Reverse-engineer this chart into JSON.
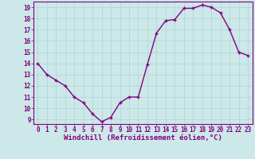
{
  "hours": [
    0,
    1,
    2,
    3,
    4,
    5,
    6,
    7,
    8,
    9,
    10,
    11,
    12,
    13,
    14,
    15,
    16,
    17,
    18,
    19,
    20,
    21,
    22,
    23
  ],
  "values": [
    14,
    13,
    12.5,
    12,
    11,
    10.5,
    9.5,
    8.8,
    9.2,
    10.5,
    11,
    11,
    13.9,
    16.7,
    17.8,
    17.9,
    18.9,
    18.9,
    19.2,
    19.0,
    18.5,
    17.0,
    15.0,
    14.7
  ],
  "line_color": "#800080",
  "marker": "+",
  "marker_color": "#800080",
  "bg_color": "#cce8e8",
  "grid_color": "#b0d4d4",
  "xlabel": "Windchill (Refroidissement éolien,°C)",
  "ylim_min": 8.6,
  "ylim_max": 19.5,
  "yticks": [
    9,
    10,
    11,
    12,
    13,
    14,
    15,
    16,
    17,
    18,
    19
  ],
  "xticks": [
    0,
    1,
    2,
    3,
    4,
    5,
    6,
    7,
    8,
    9,
    10,
    11,
    12,
    13,
    14,
    15,
    16,
    17,
    18,
    19,
    20,
    21,
    22,
    23
  ],
  "tick_fontsize": 5.5,
  "xlabel_fontsize": 6.5,
  "line_width": 1.0,
  "marker_size": 3.5
}
